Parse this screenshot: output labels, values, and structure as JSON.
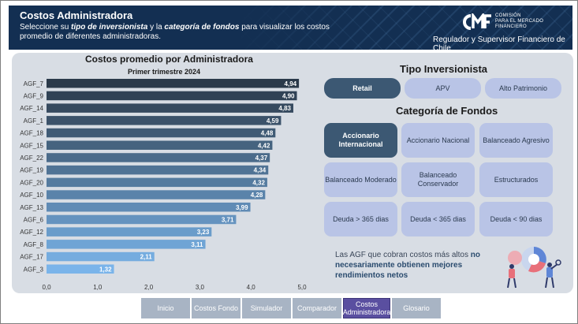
{
  "header": {
    "title": "Costos Administradora",
    "subtitle_pre": "Seleccione su ",
    "subtitle_em1": "tipo de inversionista",
    "subtitle_mid": " y la ",
    "subtitle_em2": "categoría de fondos",
    "subtitle_post": " para visualizar los costos promedio de diferentes administradoras.",
    "logo_line1": "COMISIÓN",
    "logo_line2": "PARA EL MERCADO",
    "logo_line3": "FINANCIERO",
    "logo_tagline": "Regulador y Supervisor Financiero de Chile"
  },
  "chart": {
    "title": "Costos promedio por Administradora",
    "subtitle": "Primer trimestre 2024"
  },
  "chart_data": {
    "type": "bar",
    "orientation": "horizontal",
    "title": "Costos promedio por Administradora",
    "subtitle": "Primer trimestre 2024",
    "categories": [
      "AGF_7",
      "AGF_9",
      "AGF_14",
      "AGF_1",
      "AGF_18",
      "AGF_15",
      "AGF_22",
      "AGF_19",
      "AGF_20",
      "AGF_10",
      "AGF_13",
      "AGF_6",
      "AGF_12",
      "AGF_8",
      "AGF_17",
      "AGF_3"
    ],
    "values": [
      4.94,
      4.9,
      4.83,
      4.59,
      4.48,
      4.42,
      4.37,
      4.34,
      4.32,
      4.28,
      3.99,
      3.71,
      3.23,
      3.11,
      2.11,
      1.32
    ],
    "value_labels": [
      "4,94",
      "4,90",
      "4,83",
      "4,59",
      "4,48",
      "4,42",
      "4,37",
      "4,34",
      "4,32",
      "4,28",
      "3,99",
      "3,71",
      "3,23",
      "3,11",
      "2,11",
      "1,32"
    ],
    "xlim": [
      0,
      5
    ],
    "xticks": [
      0,
      1,
      2,
      3,
      4,
      5
    ],
    "xtick_labels": [
      "0,0",
      "1,0",
      "2,0",
      "3,0",
      "4,0",
      "5,0"
    ],
    "color_dark": "#2b3a4a",
    "color_light": "#7ab4ea",
    "grid": false
  },
  "investor": {
    "title": "Tipo Inversionista",
    "options": [
      "Retail",
      "APV",
      "Alto Patrimonio"
    ],
    "selected": "Retail"
  },
  "category": {
    "title": "Categoría de Fondos",
    "options": [
      "Accionario Internacional",
      "Accionario Nacional",
      "Balanceado Agresivo",
      "Balanceado Moderado",
      "Balanceado Conservador",
      "Estructurados",
      "Deuda > 365 dias",
      "Deuda < 365 dias",
      "Deuda < 90 dias"
    ],
    "selected": "Accionario Internacional"
  },
  "note": {
    "text1": "Las AGF que cobran costos más altos ",
    "highlight": "no necesariamente obtienen mejores rendimientos netos"
  },
  "nav": {
    "items": [
      "Inicio",
      "Costos Fondo",
      "Simulador",
      "Comparador",
      "Costos Administradora",
      "Glosario"
    ],
    "active": "Costos Administradora"
  },
  "colors": {
    "header_bg": "#132f52",
    "panel_bg": "#d8dde4",
    "selected": "#3c5873",
    "option": "#b9c4e6",
    "nav_bg": "#a8b4c4",
    "nav_active": "#5a4fa0"
  },
  "icons": {
    "logo": "cmf-logo-icon",
    "illustration": "people-chart-illustration-icon"
  }
}
